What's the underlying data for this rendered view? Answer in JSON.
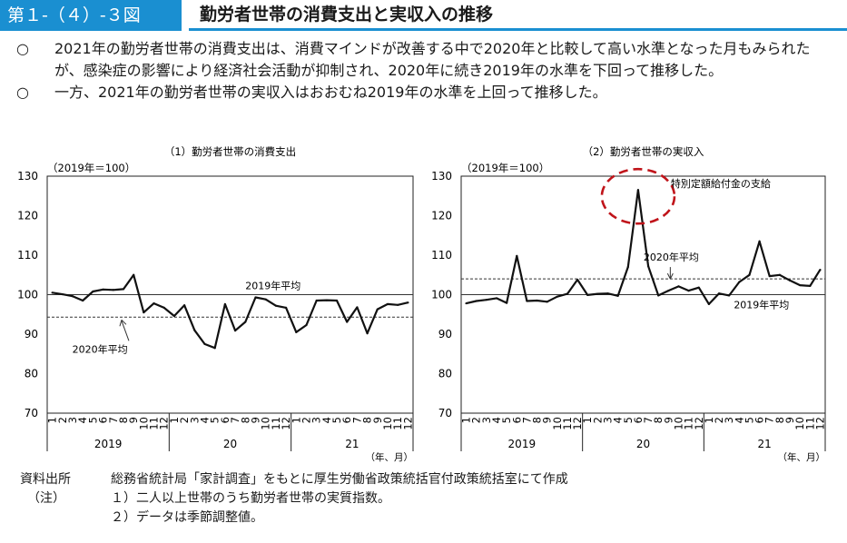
{
  "header": {
    "figure_number": "第１-（４）-３図",
    "title": "勤労者世帯の消費支出と実収入の推移"
  },
  "bullets": [
    {
      "mark": "○",
      "text": "2021年の勤労者世帯の消費支出は、消費マインドが改善する中で2020年と比較して高い水準となった月もみられたが、感染症の影響により経済社会活動が抑制され、2020年に続き2019年の水準を下回って推移した。"
    },
    {
      "mark": "○",
      "text": "一方、2021年の勤労者世帯の実収入はおおむね2019年の水準を上回って推移した。"
    }
  ],
  "chart_data": [
    {
      "type": "line",
      "title": "（1）勤労者世帯の消費支出",
      "index_note": "（2019年＝100）",
      "ylim": [
        70,
        130
      ],
      "yticks": [
        "130",
        "120",
        "110",
        "100",
        "90",
        "80",
        "70"
      ],
      "month_labels": [
        "1",
        "2",
        "3",
        "4",
        "5",
        "6",
        "7",
        "8",
        "9",
        "10",
        "11",
        "12",
        "1",
        "2",
        "3",
        "4",
        "5",
        "6",
        "7",
        "8",
        "9",
        "10",
        "11",
        "12",
        "1",
        "2",
        "3",
        "4",
        "5",
        "6",
        "7",
        "8",
        "9",
        "10",
        "11",
        "12"
      ],
      "year_labels": [
        "2019",
        "20",
        "21"
      ],
      "x_unit_label": "（年、月）",
      "series": [
        {
          "values": [
            100.5,
            100.1,
            99.6,
            98.5,
            100.8,
            101.3,
            101.2,
            101.4,
            105.0,
            95.5,
            97.8,
            96.7,
            94.6,
            97.3,
            91.0,
            87.5,
            86.5,
            97.6,
            90.9,
            93.1,
            99.3,
            98.8,
            97.2,
            96.7,
            90.5,
            92.3,
            98.5,
            98.6,
            98.5,
            93.1,
            96.8,
            90.2,
            96.3,
            97.6,
            97.4,
            98.0
          ]
        }
      ],
      "reference_lines": [
        {
          "label": "2019年平均",
          "value": 100,
          "style": "solid"
        },
        {
          "label": "2020年平均",
          "value": 94.3,
          "style": "dashed"
        }
      ]
    },
    {
      "type": "line",
      "title": "（2）勤労者世帯の実収入",
      "index_note": "（2019年＝100）",
      "ylim": [
        70,
        130
      ],
      "yticks": [
        "130",
        "120",
        "110",
        "100",
        "90",
        "80",
        "70"
      ],
      "month_labels": [
        "1",
        "2",
        "3",
        "4",
        "5",
        "6",
        "7",
        "8",
        "9",
        "10",
        "11",
        "12",
        "1",
        "2",
        "3",
        "4",
        "5",
        "6",
        "7",
        "8",
        "9",
        "10",
        "11",
        "12",
        "1",
        "2",
        "3",
        "4",
        "5",
        "6",
        "7",
        "8",
        "9",
        "10",
        "11",
        "12"
      ],
      "year_labels": [
        "2019",
        "20",
        "21"
      ],
      "x_unit_label": "（年、月）",
      "series": [
        {
          "values": [
            97.8,
            98.4,
            98.7,
            99.1,
            97.9,
            109.8,
            98.4,
            98.5,
            98.2,
            99.5,
            100.2,
            103.8,
            99.9,
            100.2,
            100.3,
            99.7,
            107.0,
            126.5,
            107.2,
            99.8,
            101.0,
            102.1,
            101.0,
            101.8,
            97.6,
            100.3,
            99.8,
            103.2,
            105.0,
            113.5,
            104.7,
            105.0,
            103.6,
            102.4,
            102.2,
            106.3
          ]
        }
      ],
      "reference_lines": [
        {
          "label": "2019年平均",
          "value": 100,
          "style": "solid"
        },
        {
          "label": "2020年平均",
          "value": 104.0,
          "style": "dashed"
        }
      ],
      "annotation": {
        "label": "特別定額給付金の支給",
        "month_index": 17
      }
    }
  ],
  "notes": [
    {
      "label": "資料出所",
      "text": "総務省統計局「家計調査」をもとに厚生労働省政策統括官付政策統括室にて作成"
    },
    {
      "label": "（注）",
      "text": "１）二人以上世帯のうち勤労者世帯の実質指数。"
    },
    {
      "label": "",
      "text": "２）データは季節調整値。"
    }
  ]
}
